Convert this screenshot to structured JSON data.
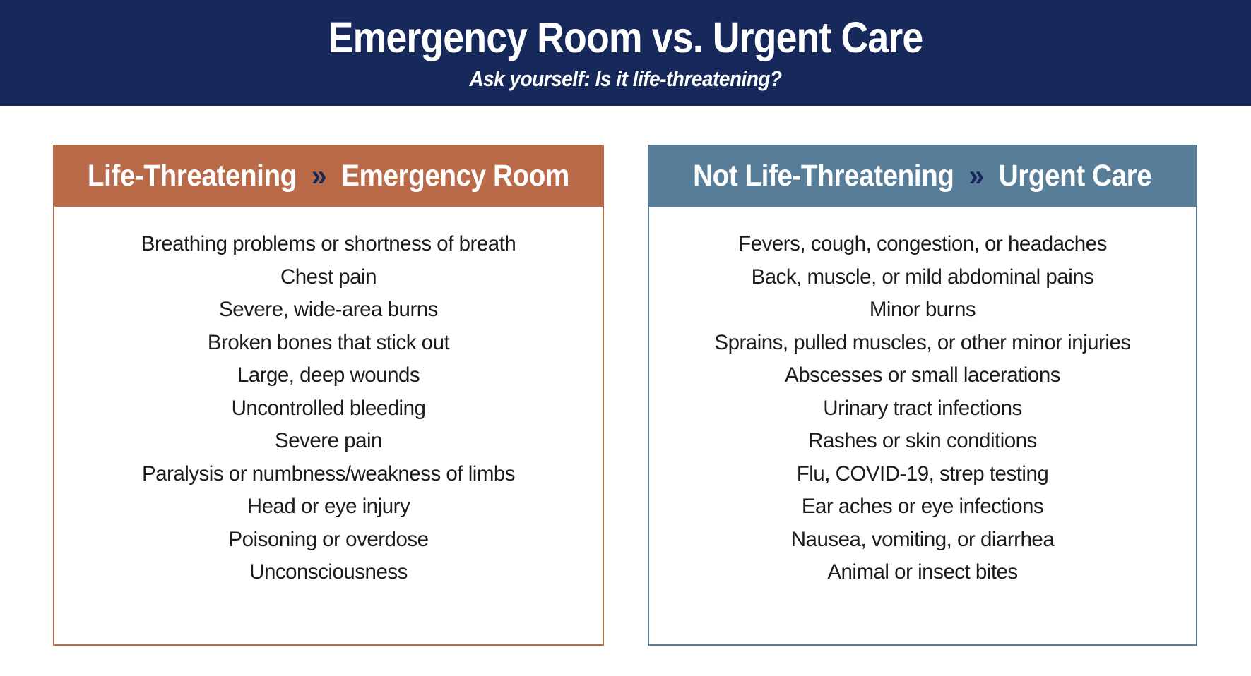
{
  "header": {
    "title": "Emergency Room vs. Urgent Care",
    "subtitle": "Ask yourself: Is it life-threatening?"
  },
  "colors": {
    "banner_navy": "#16295A",
    "emergency_accent": "#B86A49",
    "urgent_accent": "#577D99",
    "list_text": "#1B1B1B",
    "background": "#FFFFFF"
  },
  "panels": [
    {
      "id": "emergency-room",
      "heading_primary": "Life-Threatening",
      "heading_separator": "»",
      "heading_secondary": "Emergency Room",
      "accent_color": "#B86A49",
      "items": [
        "Breathing problems or shortness of breath",
        "Chest pain",
        "Severe, wide-area burns",
        "Broken bones that stick out",
        "Large, deep wounds",
        "Uncontrolled bleeding",
        "Severe pain",
        "Paralysis or numbness/weakness of limbs",
        "Head or eye injury",
        "Poisoning or overdose",
        "Unconsciousness"
      ]
    },
    {
      "id": "urgent-care",
      "heading_primary": "Not Life-Threatening",
      "heading_separator": "»",
      "heading_secondary": "Urgent Care",
      "accent_color": "#577D99",
      "items": [
        "Fevers, cough, congestion, or headaches",
        "Back, muscle, or mild abdominal pains",
        "Minor burns",
        "Sprains, pulled muscles, or other minor injuries",
        "Abscesses or small lacerations",
        "Urinary tract infections",
        "Rashes or skin conditions",
        "Flu, COVID-19, strep testing",
        "Ear aches or eye infections",
        "Nausea, vomiting, or diarrhea",
        "Animal or insect bites"
      ]
    }
  ]
}
